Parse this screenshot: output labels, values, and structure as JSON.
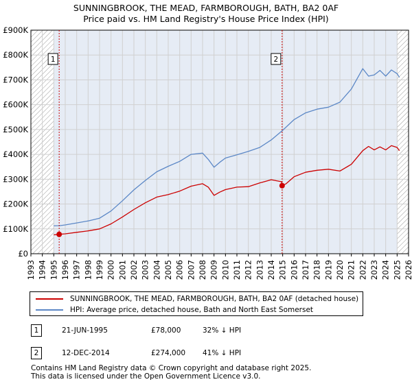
{
  "title_line1": "SUNNINGBROOK, THE MEAD, FARMBOROUGH, BATH, BA2 0AF",
  "title_line2": "Price paid vs. HM Land Registry's House Price Index (HPI)",
  "colors": {
    "property": "#cc0000",
    "hpi": "#5b87c6",
    "band": "#e6ecf5",
    "grid": "#d0d0d0",
    "marker": "#cc0000"
  },
  "chart_data": {
    "type": "line",
    "title": "Price paid vs. HM Land Registry's House Price Index (HPI)",
    "xlabel": "",
    "ylabel": "",
    "xlim": [
      1993,
      2026
    ],
    "ylim": [
      0,
      900000
    ],
    "y_ticks": [
      0,
      100000,
      200000,
      300000,
      400000,
      500000,
      600000,
      700000,
      800000,
      900000
    ],
    "y_tick_labels": [
      "£0",
      "£100K",
      "£200K",
      "£300K",
      "£400K",
      "£500K",
      "£600K",
      "£700K",
      "£800K",
      "£900K"
    ],
    "x_ticks": [
      "1993",
      "1994",
      "1995",
      "1996",
      "1997",
      "1998",
      "1999",
      "2000",
      "2001",
      "2002",
      "2003",
      "2004",
      "2005",
      "2006",
      "2007",
      "2008",
      "2009",
      "2010",
      "2011",
      "2012",
      "2013",
      "2014",
      "2015",
      "2016",
      "2017",
      "2018",
      "2019",
      "2020",
      "2021",
      "2022",
      "2023",
      "2024",
      "2025",
      "2026"
    ],
    "hatched_ranges": [
      [
        1993,
        1995.0
      ],
      [
        2025.0,
        2026
      ]
    ],
    "highlight_range": [
      1995.0,
      2025.0
    ],
    "series": [
      {
        "name": "SUNNINGBROOK, THE MEAD, FARMBOROUGH, BATH, BA2 0AF (detached house)",
        "color": "#cc0000",
        "x": [
          1995.0,
          1995.47,
          1996,
          1997,
          1998,
          1999,
          2000,
          2001,
          2002,
          2003,
          2004,
          2005,
          2006,
          2007,
          2008,
          2008.5,
          2009,
          2009.5,
          2010,
          2011,
          2012,
          2013,
          2014,
          2014.9,
          2014.95,
          2015.3,
          2016,
          2017,
          2018,
          2019,
          2020,
          2021,
          2022,
          2022.5,
          2023,
          2023.5,
          2024,
          2024.5,
          2025,
          2025.2
        ],
        "y": [
          76000,
          78000,
          80000,
          86000,
          92000,
          100000,
          120000,
          148000,
          178000,
          205000,
          228000,
          238000,
          252000,
          272000,
          282000,
          268000,
          235000,
          248000,
          258000,
          268000,
          270000,
          285000,
          298000,
          290000,
          274000,
          282000,
          310000,
          328000,
          336000,
          340000,
          333000,
          360000,
          415000,
          432000,
          418000,
          430000,
          418000,
          435000,
          428000,
          415000
        ]
      },
      {
        "name": "HPI: Average price, detached house, Bath and North East Somerset",
        "color": "#5b87c6",
        "x": [
          1995.0,
          1995.5,
          1996,
          1997,
          1998,
          1999,
          2000,
          2001,
          2002,
          2003,
          2004,
          2005,
          2006,
          2007,
          2008,
          2008.5,
          2009,
          2009.5,
          2010,
          2011,
          2012,
          2013,
          2014,
          2015,
          2016,
          2017,
          2018,
          2019,
          2020,
          2021,
          2022,
          2022.5,
          2023,
          2023.5,
          2024,
          2024.5,
          2025,
          2025.2
        ],
        "y": [
          112000,
          113000,
          116000,
          124000,
          132000,
          143000,
          172000,
          213000,
          257000,
          295000,
          330000,
          352000,
          372000,
          400000,
          405000,
          380000,
          348000,
          368000,
          385000,
          398000,
          412000,
          428000,
          458000,
          497000,
          540000,
          567000,
          582000,
          590000,
          610000,
          663000,
          745000,
          715000,
          720000,
          738000,
          715000,
          740000,
          725000,
          710000
        ]
      }
    ],
    "sales": [
      {
        "label": "1",
        "x": 1995.47,
        "y": 78000
      },
      {
        "label": "2",
        "x": 2014.95,
        "y": 274000
      }
    ]
  },
  "legend": {
    "property": "SUNNINGBROOK, THE MEAD, FARMBOROUGH, BATH, BA2 0AF (detached house)",
    "hpi": "HPI: Average price, detached house, Bath and North East Somerset"
  },
  "sales_table": [
    {
      "num": "1",
      "date": "21-JUN-1995",
      "price": "£78,000",
      "hpi": "32% ↓ HPI"
    },
    {
      "num": "2",
      "date": "12-DEC-2014",
      "price": "£274,000",
      "hpi": "41% ↓ HPI"
    }
  ],
  "footer_line1": "Contains HM Land Registry data © Crown copyright and database right 2025.",
  "footer_line2": "This data is licensed under the Open Government Licence v3.0."
}
